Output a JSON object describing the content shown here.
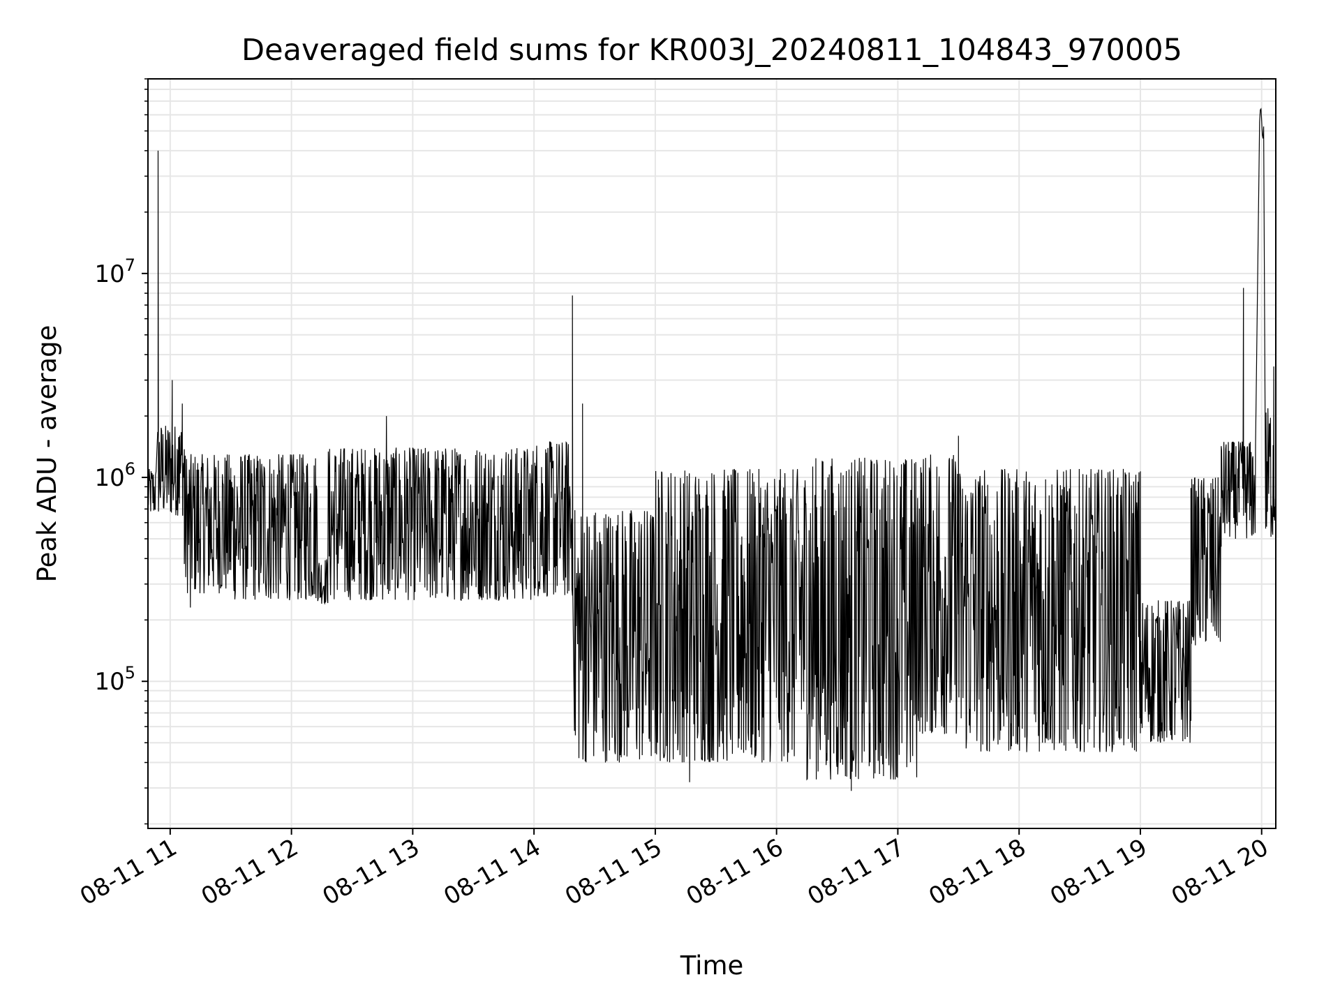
{
  "chart_data": {
    "type": "line",
    "title": "Deaveraged field sums for KR003J_20240811_104843_970005",
    "xlabel": "Time",
    "ylabel": "Peak ADU - average",
    "yscale": "log",
    "ylim": [
      19000,
      90000000
    ],
    "xlim": [
      "2024-08-11 10:49",
      "2024-08-11 20:07"
    ],
    "grid": true,
    "grid_minor": true,
    "line_color": "#000000",
    "grid_color": "#e6e6e6",
    "x_ticks": [
      {
        "value": "2024-08-11 11:00",
        "label": "08-11 11"
      },
      {
        "value": "2024-08-11 12:00",
        "label": "08-11 12"
      },
      {
        "value": "2024-08-11 13:00",
        "label": "08-11 13"
      },
      {
        "value": "2024-08-11 14:00",
        "label": "08-11 14"
      },
      {
        "value": "2024-08-11 15:00",
        "label": "08-11 15"
      },
      {
        "value": "2024-08-11 16:00",
        "label": "08-11 16"
      },
      {
        "value": "2024-08-11 17:00",
        "label": "08-11 17"
      },
      {
        "value": "2024-08-11 18:00",
        "label": "08-11 18"
      },
      {
        "value": "2024-08-11 19:00",
        "label": "08-11 19"
      },
      {
        "value": "2024-08-11 20:00",
        "label": "08-11 20"
      }
    ],
    "y_ticks": [
      {
        "value": 100000,
        "base": "10",
        "exp": "5"
      },
      {
        "value": 1000000,
        "base": "10",
        "exp": "6"
      },
      {
        "value": 10000000,
        "base": "10",
        "exp": "7"
      }
    ],
    "segments": [
      {
        "start": "2024-08-11 10:49",
        "end": "2024-08-11 10:53",
        "low": 650000,
        "high": 1100000
      },
      {
        "start": "2024-08-11 10:54",
        "end": "2024-08-11 11:07",
        "low": 650000,
        "high": 1800000
      },
      {
        "start": "2024-08-11 11:07",
        "end": "2024-08-11 11:30",
        "low": 270000,
        "high": 1300000
      },
      {
        "start": "2024-08-11 11:30",
        "end": "2024-08-11 12:13",
        "low": 250000,
        "high": 1300000
      },
      {
        "start": "2024-08-11 12:13",
        "end": "2024-08-11 12:18",
        "low": 240000,
        "high": 400000
      },
      {
        "start": "2024-08-11 12:18",
        "end": "2024-08-11 14:00",
        "low": 250000,
        "high": 1400000
      },
      {
        "start": "2024-08-11 14:00",
        "end": "2024-08-11 14:19",
        "low": 260000,
        "high": 1500000
      },
      {
        "start": "2024-08-11 14:20",
        "end": "2024-08-11 15:00",
        "low": 40000,
        "high": 700000
      },
      {
        "start": "2024-08-11 15:00",
        "end": "2024-08-11 16:15",
        "low": 40000,
        "high": 1100000
      },
      {
        "start": "2024-08-11 16:15",
        "end": "2024-08-11 17:10",
        "low": 33000,
        "high": 1250000
      },
      {
        "start": "2024-08-11 17:10",
        "end": "2024-08-11 17:30",
        "low": 55000,
        "high": 1300000
      },
      {
        "start": "2024-08-11 17:30",
        "end": "2024-08-11 19:00",
        "low": 45000,
        "high": 1100000
      },
      {
        "start": "2024-08-11 19:00",
        "end": "2024-08-11 19:25",
        "low": 50000,
        "high": 250000
      },
      {
        "start": "2024-08-11 19:25",
        "end": "2024-08-11 19:40",
        "low": 150000,
        "high": 1000000
      },
      {
        "start": "2024-08-11 19:40",
        "end": "2024-08-11 19:57",
        "low": 500000,
        "high": 1500000
      },
      {
        "start": "2024-08-11 20:02",
        "end": "2024-08-11 20:07",
        "low": 500000,
        "high": 2200000
      }
    ],
    "spikes": [
      {
        "time": "2024-08-11 10:54",
        "value": 40000000
      },
      {
        "time": "2024-08-11 11:01",
        "value": 3000000
      },
      {
        "time": "2024-08-11 11:06",
        "value": 2300000
      },
      {
        "time": "2024-08-11 12:47",
        "value": 2000000
      },
      {
        "time": "2024-08-11 14:19",
        "value": 7800000
      },
      {
        "time": "2024-08-11 14:24",
        "value": 2300000
      },
      {
        "time": "2024-08-11 17:30",
        "value": 1600000
      },
      {
        "time": "2024-08-11 19:51",
        "value": 8500000
      },
      {
        "time": "2024-08-11 20:06",
        "value": 3500000
      }
    ],
    "plateaus": [
      {
        "start": "2024-08-11 11:04",
        "end": "2024-08-11 11:05",
        "value": 1600000
      },
      {
        "start": "2024-08-11 19:59",
        "end": "2024-08-11 20:01",
        "value": 65000000
      }
    ],
    "dips": [
      {
        "time": "2024-08-11 11:10",
        "value": 230000
      },
      {
        "time": "2024-08-11 16:37",
        "value": 29000
      },
      {
        "time": "2024-08-11 15:17",
        "value": 32000
      }
    ]
  }
}
